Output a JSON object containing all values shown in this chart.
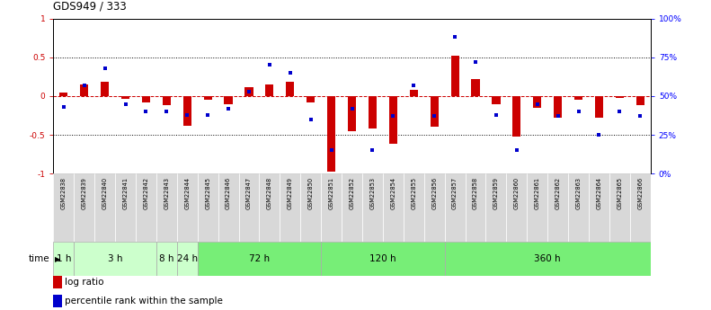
{
  "title": "GDS949 / 333",
  "samples": [
    "GSM22838",
    "GSM22839",
    "GSM22840",
    "GSM22841",
    "GSM22842",
    "GSM22843",
    "GSM22844",
    "GSM22845",
    "GSM22846",
    "GSM22847",
    "GSM22848",
    "GSM22849",
    "GSM22850",
    "GSM22851",
    "GSM22852",
    "GSM22853",
    "GSM22854",
    "GSM22855",
    "GSM22856",
    "GSM22857",
    "GSM22858",
    "GSM22859",
    "GSM22860",
    "GSM22861",
    "GSM22862",
    "GSM22863",
    "GSM22864",
    "GSM22865",
    "GSM22866"
  ],
  "log_ratio": [
    0.05,
    0.15,
    0.18,
    -0.03,
    -0.08,
    -0.12,
    -0.38,
    -0.05,
    -0.1,
    0.12,
    0.15,
    0.18,
    -0.08,
    -0.98,
    -0.45,
    -0.42,
    -0.62,
    0.08,
    -0.4,
    0.52,
    0.22,
    -0.1,
    -0.52,
    -0.15,
    -0.28,
    -0.05,
    -0.28,
    -0.02,
    -0.12
  ],
  "percentile_rank": [
    43,
    57,
    68,
    45,
    40,
    40,
    38,
    38,
    42,
    53,
    70,
    65,
    35,
    15,
    42,
    15,
    37,
    57,
    37,
    88,
    72,
    38,
    15,
    45,
    37,
    40,
    25,
    40,
    37
  ],
  "time_groups": [
    {
      "label": "1 h",
      "start": 0,
      "end": 1,
      "light": true
    },
    {
      "label": "3 h",
      "start": 1,
      "end": 5,
      "light": true
    },
    {
      "label": "8 h",
      "start": 5,
      "end": 6,
      "light": true
    },
    {
      "label": "24 h",
      "start": 6,
      "end": 7,
      "light": true
    },
    {
      "label": "72 h",
      "start": 7,
      "end": 13,
      "light": false
    },
    {
      "label": "120 h",
      "start": 13,
      "end": 19,
      "light": false
    },
    {
      "label": "360 h",
      "start": 19,
      "end": 29,
      "light": false
    }
  ],
  "color_light_green": "#ccffcc",
  "color_mid_green": "#77ee77",
  "color_label_bg": "#d8d8d8",
  "bar_color": "#cc0000",
  "dot_color": "#0000cc",
  "ylim": [
    -1,
    1
  ],
  "y2lim": [
    0,
    100
  ],
  "legend_log": "log ratio",
  "legend_pct": "percentile rank within the sample"
}
